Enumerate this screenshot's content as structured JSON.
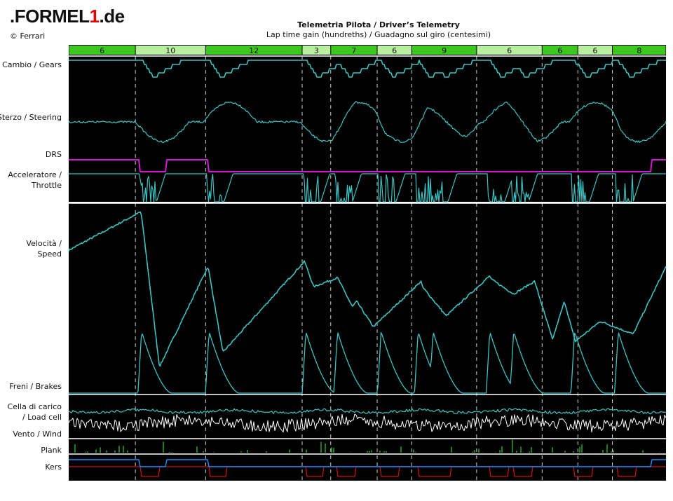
{
  "header": {
    "logo_prefix": ".FORMEL",
    "logo_digit": "1",
    "logo_suffix": ".de",
    "copyright": "© Ferrari",
    "title": "Telemetria Pilota / Driver’s Telemetry",
    "subtitle": "Lap time gain (hundreths) / Guadagno sul giro (centesimi)"
  },
  "channel_labels": {
    "gears": "Cambio / Gears",
    "steering": "Sterzo / Steering",
    "drs": "DRS",
    "throttle_1": "Acceleratore /",
    "throttle_2": "Throttle",
    "speed_1": "Velocità /",
    "speed_2": "Speed",
    "brakes": "Freni / Brakes",
    "loadcell_1": "Cella di carico",
    "loadcell_2": "/ Load cell",
    "wind": "Vento / Wind",
    "plank": "Plank",
    "kers": "Kers"
  },
  "colors": {
    "background": "#000000",
    "trace": "#3cc3c3",
    "trace_white": "#ffffff",
    "drs": "#d21ad2",
    "plank": "#2ed12e",
    "kers_red": "#d01010",
    "kers_blue": "#1e90ff",
    "segment_dark": "#3cc81e",
    "segment_light": "#b9f0a0",
    "logo_red": "#e10600"
  },
  "chart_data": {
    "type": "line",
    "x_axis": "lap distance (no tick labels shown)",
    "segments": [
      {
        "gain": "6"
      },
      {
        "gain": "10"
      },
      {
        "gain": "12"
      },
      {
        "gain": "3"
      },
      {
        "gain": "7"
      },
      {
        "gain": "6"
      },
      {
        "gain": "9"
      },
      {
        "gain": "6"
      },
      {
        "gain": "6"
      },
      {
        "gain": "6"
      },
      {
        "gain": "8"
      }
    ],
    "segment_widths": [
      0.112,
      0.118,
      0.162,
      0.048,
      0.078,
      0.058,
      0.109,
      0.11,
      0.06,
      0.058,
      0.09
    ],
    "channels": [
      "Gears",
      "Steering",
      "DRS",
      "Throttle",
      "Speed",
      "Brakes",
      "Load cell",
      "Wind",
      "Plank",
      "Kers"
    ],
    "speed_profile": {
      "x": [
        0,
        0.12,
        0.122,
        0.152,
        0.233,
        0.235,
        0.258,
        0.395,
        0.397,
        0.41,
        0.45,
        0.475,
        0.482,
        0.51,
        0.59,
        0.592,
        0.632,
        0.705,
        0.708,
        0.745,
        0.78,
        0.81,
        0.83,
        0.848,
        0.89,
        0.945,
        1.0
      ],
      "y": [
        0.78,
        0.99,
        0.97,
        0.14,
        0.69,
        0.66,
        0.22,
        0.72,
        0.7,
        0.58,
        0.63,
        0.47,
        0.5,
        0.36,
        0.61,
        0.58,
        0.42,
        0.64,
        0.62,
        0.54,
        0.61,
        0.29,
        0.5,
        0.28,
        0.39,
        0.32,
        0.69
      ]
    },
    "brake_events": [
      0.122,
      0.235,
      0.397,
      0.45,
      0.523,
      0.585,
      0.61,
      0.705,
      0.745,
      0.847,
      0.92
    ],
    "drs_open": [
      [
        0,
        0.118
      ],
      [
        0.163,
        0.233
      ],
      [
        0.975,
        1.0
      ]
    ]
  }
}
